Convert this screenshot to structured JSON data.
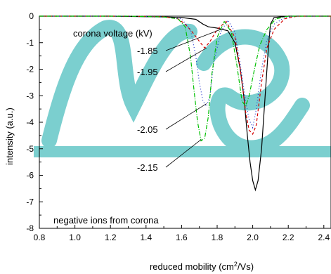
{
  "chart_data": {
    "type": "line",
    "xlabel": "reduced mobility  (cm²/Vs)",
    "xlabel_parts": [
      "reduced mobility  (cm",
      "2",
      "/Vs)"
    ],
    "ylabel": "intensity  (a.u.)",
    "xlim": [
      0.8,
      2.5
    ],
    "ylim": [
      -8,
      0
    ],
    "xticks": [
      "0.8",
      "1.0",
      "1.2",
      "1.4",
      "1.6",
      "1.8",
      "2.0",
      "2.2",
      "2.4"
    ],
    "yticks": [
      "0",
      "-1",
      "-2",
      "-3",
      "-4",
      "-5",
      "-6",
      "-7",
      "-8"
    ],
    "legend_title": "corona voltage (kV)",
    "annotation": "negative ions from corona",
    "series": [
      {
        "name": "-1.85",
        "color": "#000000",
        "dash": "",
        "points": [
          [
            0.8,
            0
          ],
          [
            1.2,
            0
          ],
          [
            1.5,
            -0.03
          ],
          [
            1.6,
            -0.05
          ],
          [
            1.68,
            -0.12
          ],
          [
            1.72,
            -0.3
          ],
          [
            1.75,
            -0.4
          ],
          [
            1.8,
            -0.45
          ],
          [
            1.86,
            -0.55
          ],
          [
            1.9,
            -1.0
          ],
          [
            1.93,
            -2.0
          ],
          [
            1.95,
            -3.0
          ],
          [
            1.97,
            -4.5
          ],
          [
            1.985,
            -5.5
          ],
          [
            2.0,
            -6.2
          ],
          [
            2.015,
            -6.55
          ],
          [
            2.03,
            -6.2
          ],
          [
            2.05,
            -5.0
          ],
          [
            2.07,
            -3.0
          ],
          [
            2.09,
            -1.0
          ],
          [
            2.1,
            -0.3
          ],
          [
            2.12,
            -0.05
          ],
          [
            2.2,
            0
          ],
          [
            2.5,
            0
          ]
        ]
      },
      {
        "name": "-1.95",
        "color": "#d40000",
        "dash": "4 3",
        "points": [
          [
            0.8,
            0
          ],
          [
            1.3,
            0
          ],
          [
            1.5,
            -0.02
          ],
          [
            1.58,
            -0.1
          ],
          [
            1.62,
            -0.3
          ],
          [
            1.66,
            -0.6
          ],
          [
            1.7,
            -0.95
          ],
          [
            1.73,
            -1.2
          ],
          [
            1.76,
            -0.95
          ],
          [
            1.8,
            -0.5
          ],
          [
            1.85,
            -0.2
          ],
          [
            1.9,
            -0.8
          ],
          [
            1.93,
            -2.0
          ],
          [
            1.96,
            -3.6
          ],
          [
            1.98,
            -4.3
          ],
          [
            2.0,
            -4.45
          ],
          [
            2.02,
            -4.1
          ],
          [
            2.05,
            -2.5
          ],
          [
            2.08,
            -1.2
          ],
          [
            2.12,
            -0.5
          ],
          [
            2.18,
            -0.1
          ],
          [
            2.25,
            0
          ],
          [
            2.5,
            0
          ]
        ]
      },
      {
        "name": "-2.05",
        "color": "#2233cc",
        "dash": "1 3",
        "points": [
          [
            0.8,
            0
          ],
          [
            1.3,
            0
          ],
          [
            1.5,
            -0.03
          ],
          [
            1.6,
            -0.1
          ],
          [
            1.65,
            -0.5
          ],
          [
            1.68,
            -1.5
          ],
          [
            1.7,
            -2.5
          ],
          [
            1.72,
            -3.2
          ],
          [
            1.74,
            -3.4
          ],
          [
            1.76,
            -3.0
          ],
          [
            1.78,
            -1.8
          ],
          [
            1.82,
            -0.6
          ],
          [
            1.86,
            -0.15
          ],
          [
            1.9,
            -0.6
          ],
          [
            1.93,
            -1.8
          ],
          [
            1.96,
            -3.2
          ],
          [
            1.98,
            -3.9
          ],
          [
            2.0,
            -4.2
          ],
          [
            2.02,
            -3.5
          ],
          [
            2.05,
            -2.0
          ],
          [
            2.08,
            -0.9
          ],
          [
            2.12,
            -0.3
          ],
          [
            2.18,
            -0.05
          ],
          [
            2.25,
            0
          ],
          [
            2.5,
            0
          ]
        ]
      },
      {
        "name": "-2.15",
        "color": "#00c000",
        "dash": "6 2 1 2",
        "points": [
          [
            0.8,
            0
          ],
          [
            1.3,
            0
          ],
          [
            1.5,
            -0.03
          ],
          [
            1.58,
            -0.1
          ],
          [
            1.62,
            -0.4
          ],
          [
            1.65,
            -1.5
          ],
          [
            1.67,
            -2.8
          ],
          [
            1.69,
            -4.0
          ],
          [
            1.71,
            -4.7
          ],
          [
            1.73,
            -4.6
          ],
          [
            1.75,
            -3.8
          ],
          [
            1.77,
            -2.2
          ],
          [
            1.8,
            -0.8
          ],
          [
            1.84,
            -0.2
          ],
          [
            1.88,
            -0.6
          ],
          [
            1.91,
            -1.8
          ],
          [
            1.94,
            -3.2
          ],
          [
            1.96,
            -3.4
          ],
          [
            1.98,
            -3.0
          ],
          [
            2.01,
            -2.0
          ],
          [
            2.04,
            -1.1
          ],
          [
            2.08,
            -0.5
          ],
          [
            2.13,
            -0.1
          ],
          [
            2.2,
            0
          ],
          [
            2.5,
            0
          ]
        ]
      }
    ],
    "watermark_color": "#4fbfbf"
  }
}
